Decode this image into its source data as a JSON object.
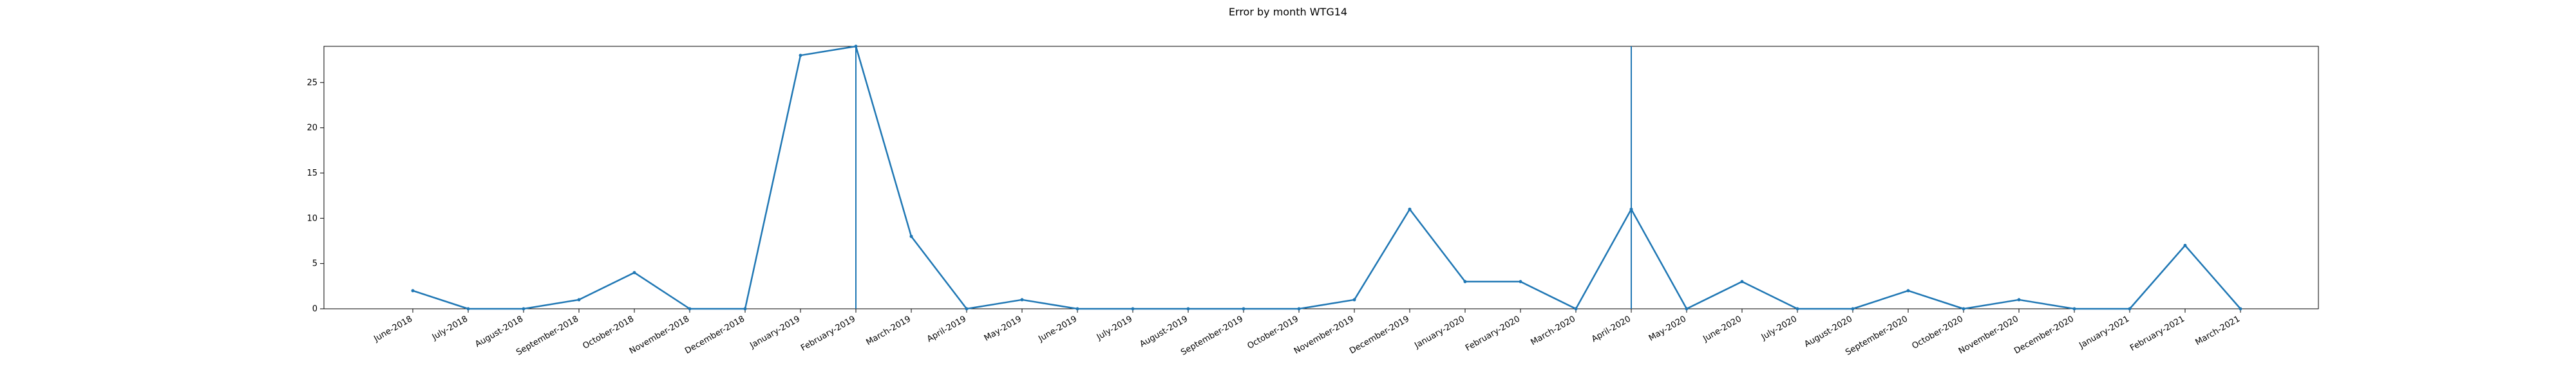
{
  "chart_data": {
    "type": "line",
    "title": "Error by month WTG14",
    "xlabel": "",
    "ylabel": "",
    "ylim": [
      0,
      29
    ],
    "yticks": [
      0,
      5,
      10,
      15,
      20,
      25
    ],
    "grid": false,
    "legend": "none",
    "line_color": "#1f77b4",
    "categories": [
      "June-2018",
      "July-2018",
      "August-2018",
      "September-2018",
      "October-2018",
      "November-2018",
      "December-2018",
      "January-2019",
      "February-2019",
      "March-2019",
      "April-2019",
      "May-2019",
      "June-2019",
      "July-2019",
      "August-2019",
      "September-2019",
      "October-2019",
      "November-2019",
      "December-2019",
      "January-2020",
      "February-2020",
      "March-2020",
      "April-2020",
      "May-2020",
      "June-2020",
      "July-2020",
      "August-2020",
      "September-2020",
      "October-2020",
      "November-2020",
      "December-2020",
      "January-2021",
      "February-2021",
      "March-2021"
    ],
    "values": [
      2,
      0,
      0,
      1,
      4,
      0,
      0,
      28,
      29,
      8,
      0,
      1,
      0,
      0,
      0,
      0,
      0,
      1,
      11,
      3,
      3,
      0,
      11,
      0,
      3,
      0,
      0,
      2,
      0,
      1,
      0,
      0,
      7,
      0
    ],
    "vertical_lines": [
      "February-2019",
      "April-2020"
    ]
  }
}
